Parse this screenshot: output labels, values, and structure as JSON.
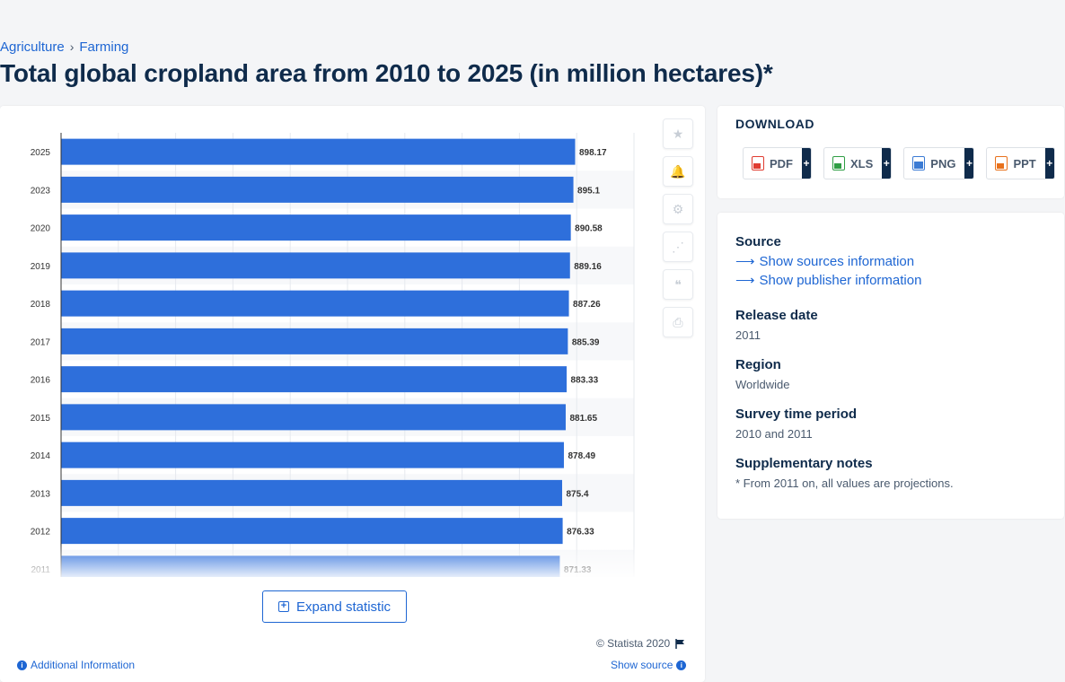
{
  "breadcrumb": {
    "items": [
      "Agriculture",
      "Farming"
    ],
    "separator": "›"
  },
  "page_title": "Total global cropland area from 2010 to 2025 (in million hectares)*",
  "chart_data": {
    "type": "bar",
    "orientation": "horizontal",
    "categories": [
      "2025",
      "2023",
      "2020",
      "2019",
      "2018",
      "2017",
      "2016",
      "2015",
      "2014",
      "2013",
      "2012",
      "2011"
    ],
    "values": [
      898.17,
      895.1,
      890.58,
      889.16,
      887.26,
      885.39,
      883.33,
      881.65,
      878.49,
      875.4,
      876.33,
      871.33
    ],
    "data_labels": [
      "898.17",
      "895.1",
      "890.58",
      "889.16",
      "887.26",
      "885.39",
      "883.33",
      "881.65",
      "878.49",
      "875.4",
      "876.33",
      "871.33"
    ],
    "xlim": [
      0,
      1000
    ],
    "grid": true,
    "bar_color": "#2e6fdb"
  },
  "side_tools": {
    "icons": [
      "star-icon",
      "bell-icon",
      "gear-icon",
      "share-icon",
      "quote-icon",
      "print-icon"
    ],
    "glyphs": [
      "★",
      "🔔",
      "⚙",
      "⋰",
      "❝",
      "⎙"
    ]
  },
  "expand_button": {
    "label": "Expand statistic",
    "icon": "+"
  },
  "footer": {
    "copyright": "© Statista 2020",
    "additional_info": "Additional Information",
    "show_source": "Show source"
  },
  "download": {
    "title": "DOWNLOAD",
    "formats": [
      {
        "label": "PDF",
        "color": "#e03c31",
        "plus": "+"
      },
      {
        "label": "XLS",
        "color": "#2f9e44",
        "plus": "+"
      },
      {
        "label": "PNG",
        "color": "#3b7bd4",
        "plus": "+"
      },
      {
        "label": "PPT",
        "color": "#e8711c",
        "plus": "+"
      }
    ]
  },
  "info": {
    "source_label": "Source",
    "show_sources": "Show sources information",
    "show_publisher": "Show publisher information",
    "release_date_label": "Release date",
    "release_date": "2011",
    "region_label": "Region",
    "region": "Worldwide",
    "survey_label": "Survey time period",
    "survey": "2010 and 2011",
    "notes_label": "Supplementary notes",
    "notes": "* From 2011 on, all values are projections."
  },
  "colors": {
    "accent": "#1e66d3",
    "navy": "#0f2b4b",
    "bar": "#2e6fdb"
  }
}
